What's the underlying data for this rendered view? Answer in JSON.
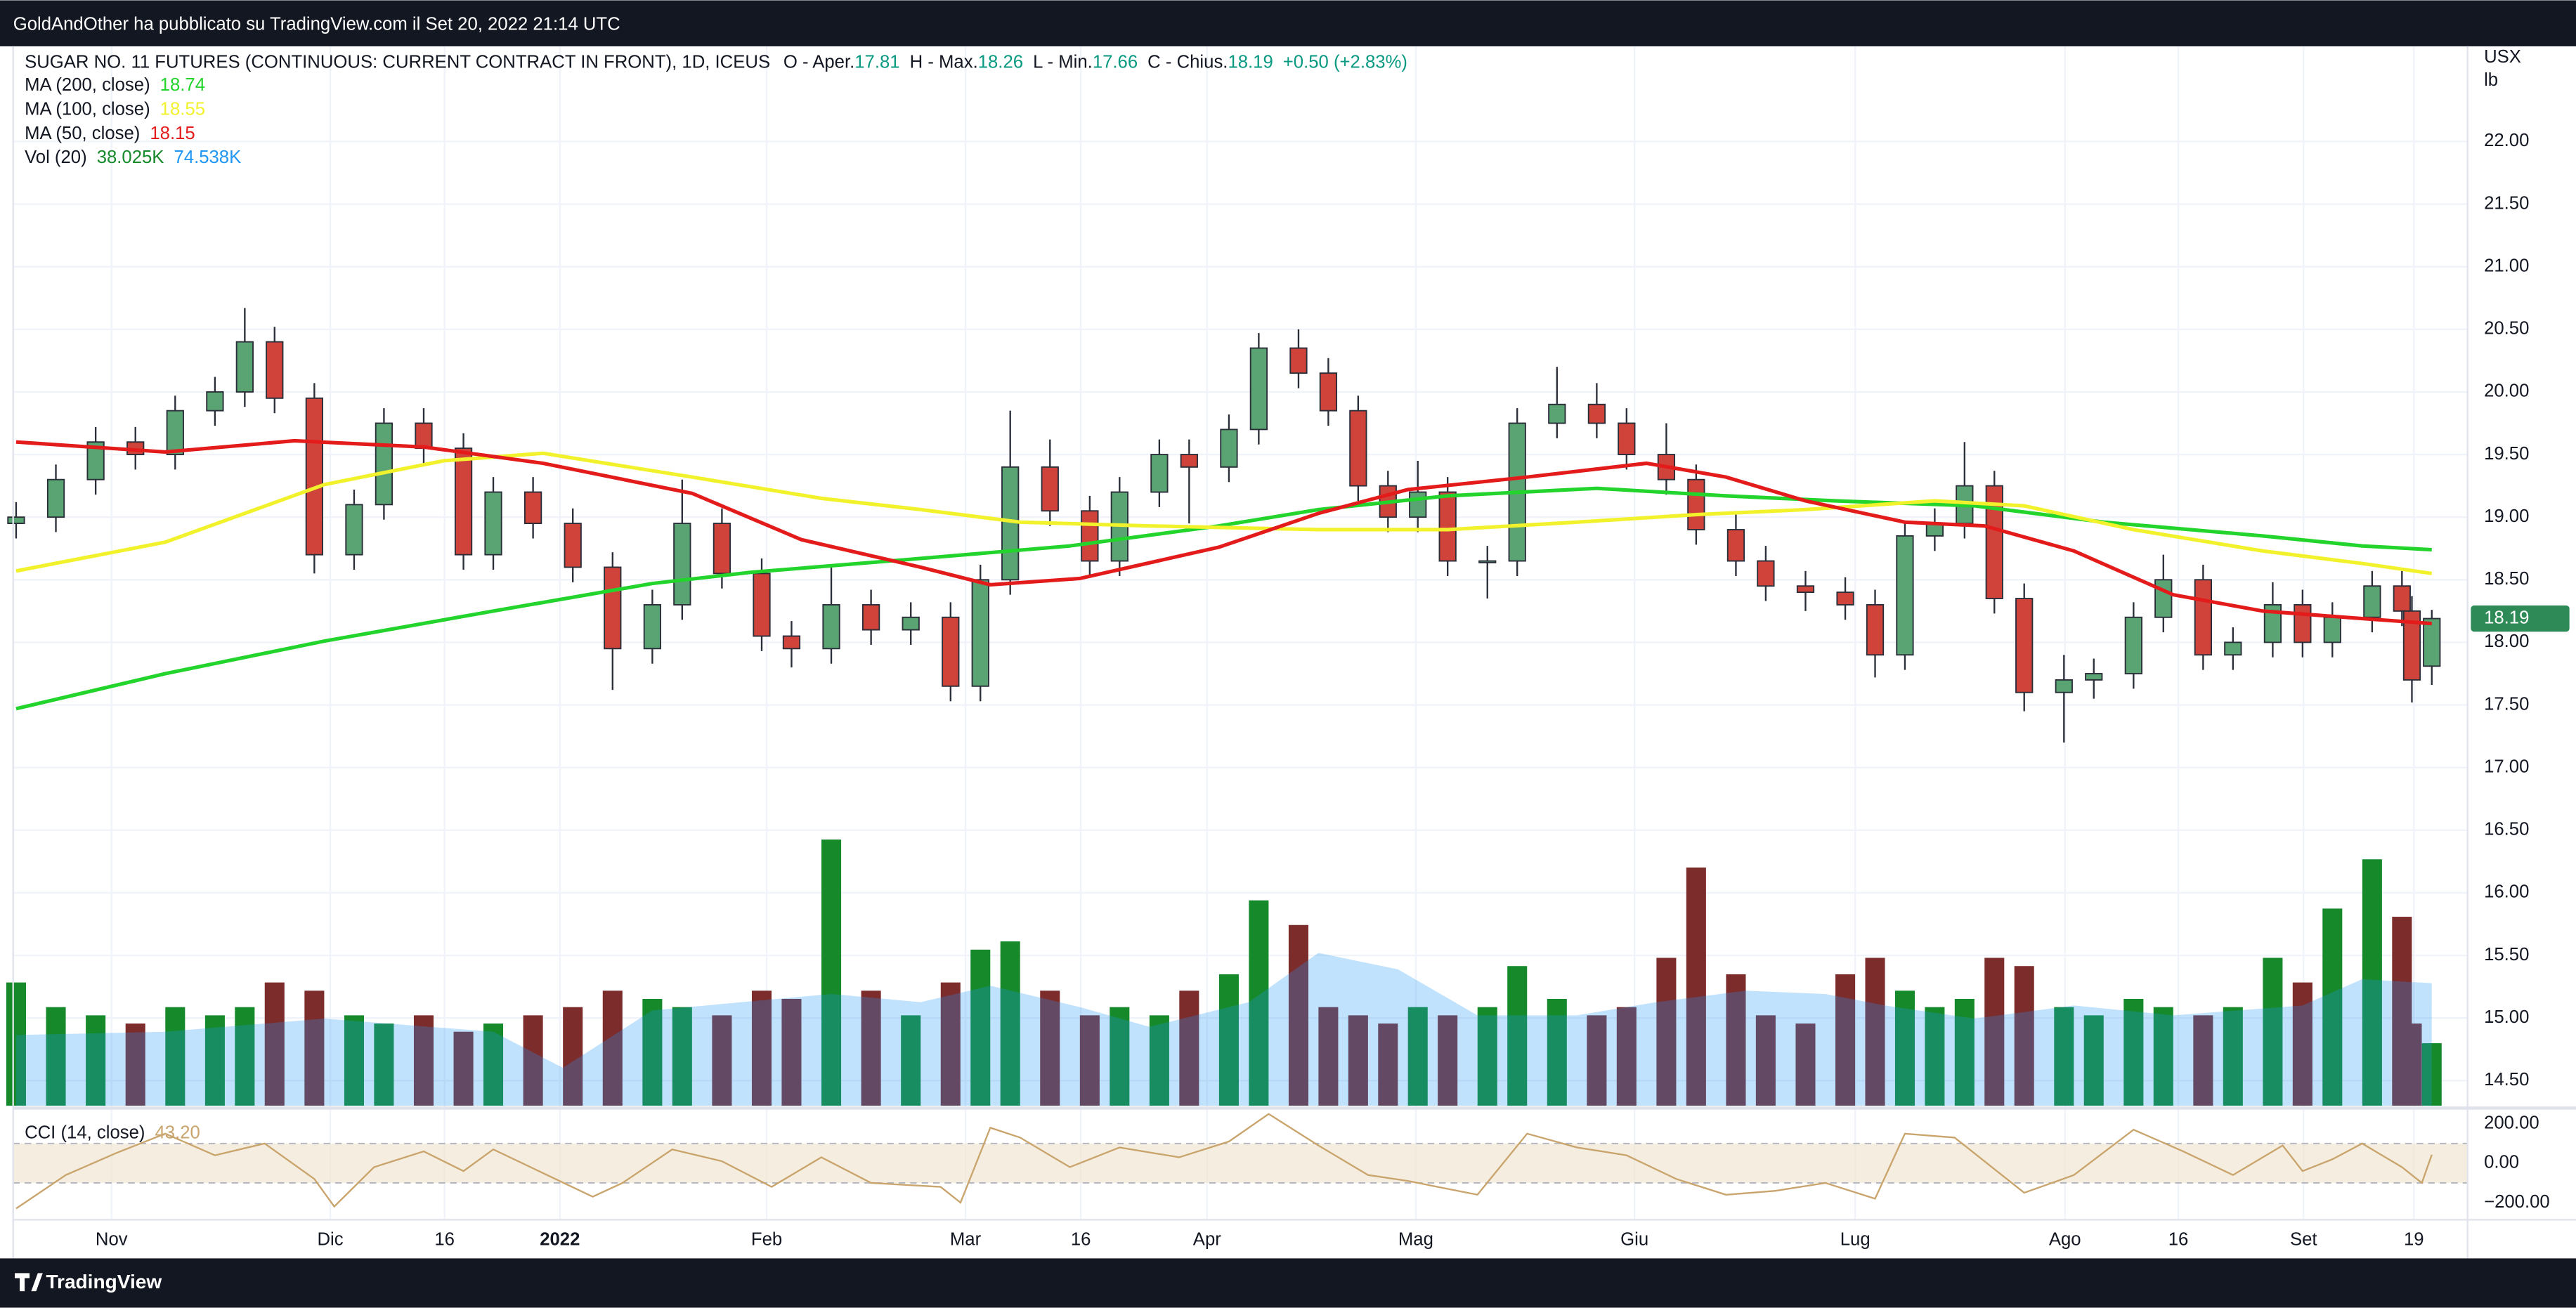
{
  "header": {
    "text": "GoldAndOther ha pubblicato su TradingView.com il Set 20, 2022 21:14 UTC"
  },
  "footer": {
    "brand": "TradingView"
  },
  "chart_data": [
    {
      "type": "candlestick",
      "title": "SUGAR NO. 11 FUTURES (CONTINUOUS: CURRENT CONTRACT IN FRONT), 1D, ICEUS",
      "ohlc_labels": [
        "O - Aper.",
        "H - Max.",
        "L - Min.",
        "C - Chius."
      ],
      "change": "+0.50 (+2.83%)",
      "unit_labels": [
        "USX",
        "lb"
      ],
      "up_color": "#5aa373",
      "down_color": "#d0433b",
      "x": [
        0,
        4,
        8,
        12,
        16,
        20,
        23,
        26,
        30,
        34,
        37,
        41,
        45,
        48,
        52,
        56,
        60,
        64,
        67,
        71,
        75,
        78,
        82,
        86,
        90,
        94,
        97,
        100,
        104,
        108,
        111,
        115,
        118,
        122,
        125,
        129,
        132,
        135,
        138,
        141,
        144,
        148,
        151,
        155,
        159,
        162,
        166,
        169,
        173,
        176,
        180,
        184,
        187,
        190,
        193,
        196,
        199,
        202,
        206,
        209,
        213,
        216,
        220,
        223,
        227,
        230,
        233,
        237,
        240,
        241,
        243
      ],
      "candles": {
        "open": [
          18.95,
          19.0,
          19.3,
          19.6,
          19.5,
          19.85,
          20.0,
          20.4,
          19.95,
          18.7,
          19.1,
          19.75,
          19.55,
          18.7,
          19.2,
          18.95,
          18.6,
          17.95,
          18.3,
          18.95,
          18.55,
          18.05,
          17.95,
          18.3,
          18.1,
          18.2,
          17.65,
          18.5,
          19.4,
          19.05,
          18.65,
          19.2,
          19.5,
          19.4,
          19.7,
          20.35,
          20.15,
          19.85,
          19.25,
          19.0,
          19.2,
          18.65,
          18.65,
          19.75,
          19.9,
          19.75,
          19.5,
          19.3,
          18.9,
          18.65,
          18.45,
          18.4,
          18.3,
          17.9,
          18.85,
          18.95,
          19.25,
          18.35,
          17.6,
          17.7,
          17.75,
          18.2,
          18.5,
          17.9,
          18.0,
          18.3,
          18.0,
          18.2,
          18.45,
          18.25,
          17.81
        ],
        "high": [
          19.12,
          19.42,
          19.72,
          19.72,
          19.97,
          20.12,
          20.67,
          20.52,
          20.07,
          19.22,
          19.87,
          19.87,
          19.67,
          19.32,
          19.32,
          19.07,
          18.72,
          18.42,
          19.3,
          19.07,
          18.67,
          18.17,
          18.6,
          18.42,
          18.32,
          18.32,
          18.62,
          19.85,
          19.62,
          19.17,
          19.32,
          19.62,
          19.62,
          19.82,
          20.47,
          20.5,
          20.27,
          19.97,
          19.37,
          19.45,
          19.32,
          18.77,
          19.87,
          20.2,
          20.07,
          19.87,
          19.75,
          19.42,
          19.02,
          18.77,
          18.57,
          18.52,
          18.42,
          18.97,
          19.07,
          19.6,
          19.37,
          18.47,
          17.9,
          17.87,
          18.32,
          18.7,
          18.62,
          18.12,
          18.48,
          18.42,
          18.32,
          18.57,
          18.57,
          18.37,
          18.26
        ],
        "low": [
          18.83,
          18.88,
          19.18,
          19.38,
          19.38,
          19.73,
          19.88,
          19.83,
          18.55,
          18.58,
          18.98,
          19.43,
          18.58,
          18.58,
          18.83,
          18.48,
          17.62,
          17.83,
          18.18,
          18.43,
          17.93,
          17.8,
          17.83,
          17.98,
          17.98,
          17.53,
          17.53,
          18.38,
          18.93,
          18.53,
          18.53,
          19.08,
          18.95,
          19.28,
          19.58,
          20.03,
          19.73,
          19.13,
          18.88,
          18.88,
          18.53,
          18.35,
          18.53,
          19.63,
          19.63,
          19.38,
          19.18,
          18.78,
          18.53,
          18.33,
          18.25,
          18.18,
          17.72,
          17.78,
          18.73,
          18.83,
          18.23,
          17.45,
          17.2,
          17.55,
          17.63,
          18.08,
          17.78,
          17.78,
          17.88,
          17.88,
          17.88,
          18.08,
          18.13,
          17.52,
          17.66
        ],
        "close": [
          19.0,
          19.3,
          19.6,
          19.5,
          19.85,
          20.0,
          20.4,
          19.95,
          18.7,
          19.1,
          19.75,
          19.55,
          18.7,
          19.2,
          18.95,
          18.6,
          17.95,
          18.3,
          18.95,
          18.55,
          18.05,
          17.95,
          18.3,
          18.1,
          18.2,
          17.65,
          18.5,
          19.4,
          19.05,
          18.65,
          19.2,
          19.5,
          19.4,
          19.7,
          20.35,
          20.15,
          19.85,
          19.25,
          19.0,
          19.2,
          18.65,
          18.65,
          19.75,
          19.9,
          19.75,
          19.5,
          19.3,
          18.9,
          18.65,
          18.45,
          18.4,
          18.3,
          17.9,
          18.85,
          18.95,
          19.25,
          18.35,
          17.6,
          17.7,
          17.75,
          18.2,
          18.5,
          17.9,
          18.0,
          18.3,
          18.0,
          18.2,
          18.45,
          18.25,
          17.7,
          18.19
        ]
      },
      "volume": {
        "name": "Vol (20)",
        "up_color": "#168a2a",
        "down_color": "#7d2c2c",
        "values": [
          75,
          60,
          55,
          50,
          60,
          55,
          60,
          75,
          70,
          55,
          50,
          55,
          45,
          50,
          55,
          60,
          70,
          65,
          60,
          55,
          70,
          65,
          162,
          70,
          55,
          75,
          95,
          100,
          70,
          55,
          60,
          55,
          70,
          80,
          125,
          110,
          60,
          55,
          50,
          60,
          55,
          60,
          85,
          65,
          55,
          60,
          90,
          145,
          80,
          55,
          50,
          80,
          90,
          70,
          60,
          65,
          90,
          85,
          60,
          55,
          65,
          60,
          55,
          60,
          90,
          75,
          120,
          150,
          115,
          50,
          38.025
        ],
        "value_label": "38.025K",
        "label_color": "#168a2a",
        "ma": {
          "color": "#2196f3",
          "x": [
            0,
            15,
            31,
            48,
            55,
            64,
            82,
            91,
            98,
            107,
            114,
            124,
            131,
            139,
            147,
            157,
            165,
            174,
            182,
            188,
            197,
            207,
            217,
            230,
            236,
            243
          ],
          "values": [
            43,
            45,
            53,
            45,
            23,
            58,
            68,
            63,
            73,
            60,
            48,
            63,
            93,
            83,
            55,
            55,
            63,
            70,
            68,
            61,
            53,
            61,
            55,
            61,
            77,
            74.538
          ],
          "value_label": "74.538K"
        }
      },
      "series": [
        {
          "name": "MA (200, close)",
          "color": "#22d42c",
          "x": [
            0,
            15,
            31,
            48,
            64,
            74,
            91,
            106,
            121,
            131,
            144,
            159,
            172,
            183,
            197,
            210,
            226,
            236,
            243
          ],
          "values": [
            17.47,
            17.75,
            18.01,
            18.25,
            18.47,
            18.56,
            18.67,
            18.77,
            18.93,
            19.06,
            19.17,
            19.23,
            19.17,
            19.13,
            19.09,
            18.96,
            18.85,
            18.77,
            18.74
          ]
        },
        {
          "name": "MA (100, close)",
          "color": "#f2f22c",
          "x": [
            0,
            15,
            31,
            43,
            53,
            68,
            81,
            91,
            101,
            114,
            131,
            144,
            157,
            169,
            180,
            193,
            202,
            213,
            226,
            236,
            243
          ],
          "values": [
            18.57,
            18.8,
            19.26,
            19.45,
            19.51,
            19.32,
            19.15,
            19.06,
            18.96,
            18.93,
            18.9,
            18.9,
            18.96,
            19.02,
            19.06,
            19.13,
            19.09,
            18.9,
            18.73,
            18.63,
            18.55
          ]
        },
        {
          "name": "MA (50, close)",
          "color": "#e31b1b",
          "x": [
            0,
            15,
            28,
            41,
            53,
            68,
            79,
            91,
            98,
            107,
            121,
            131,
            140,
            152,
            164,
            172,
            180,
            190,
            198,
            207,
            217,
            226,
            236,
            243
          ],
          "values": [
            19.6,
            19.52,
            19.61,
            19.56,
            19.43,
            19.19,
            18.82,
            18.6,
            18.46,
            18.51,
            18.76,
            19.03,
            19.22,
            19.32,
            19.43,
            19.32,
            19.13,
            18.96,
            18.93,
            18.73,
            18.38,
            18.25,
            18.19,
            18.15
          ]
        }
      ],
      "xlim": [
        -0.3,
        246.6
      ],
      "ylim": [
        14.3,
        22.76
      ],
      "yticks": [
        {
          "value": 22,
          "label": "22.00"
        },
        {
          "value": 21.5,
          "label": "21.50"
        },
        {
          "value": 21,
          "label": "21.00"
        },
        {
          "value": 20.5,
          "label": "20.50"
        },
        {
          "value": 20,
          "label": "20.00"
        },
        {
          "value": 19.5,
          "label": "19.50"
        },
        {
          "value": 19,
          "label": "19.00"
        },
        {
          "value": 18.5,
          "label": "18.50"
        },
        {
          "value": 18,
          "label": "18.00"
        },
        {
          "value": 17.5,
          "label": "17.50"
        },
        {
          "value": 17,
          "label": "17.00"
        },
        {
          "value": 16.5,
          "label": "16.50"
        },
        {
          "value": 16,
          "label": "16.00"
        },
        {
          "value": 15.5,
          "label": "15.50"
        },
        {
          "value": 15,
          "label": "15.00"
        },
        {
          "value": 14.5,
          "label": "14.50"
        }
      ],
      "xticks": [
        {
          "value": 9.6,
          "label": "Nov"
        },
        {
          "value": 31.6,
          "label": "Dic"
        },
        {
          "value": 43.1,
          "label": "16"
        },
        {
          "value": 54.7,
          "label": "2022"
        },
        {
          "value": 75.5,
          "label": "Feb"
        },
        {
          "value": 95.5,
          "label": "Mar"
        },
        {
          "value": 107.1,
          "label": "16"
        },
        {
          "value": 119.8,
          "label": "Apr"
        },
        {
          "value": 140.8,
          "label": "Mag"
        },
        {
          "value": 162.8,
          "label": "Giu"
        },
        {
          "value": 185,
          "label": "Lug"
        },
        {
          "value": 206.1,
          "label": "Ago"
        },
        {
          "value": 217.5,
          "label": "16"
        },
        {
          "value": 230.1,
          "label": "Set"
        },
        {
          "value": 241.2,
          "label": "19"
        }
      ],
      "grid": true,
      "last_price_color": "#2e8b57"
    },
    {
      "type": "line",
      "title": "CCI (14, close)",
      "color": "#c9a46c",
      "band": [
        -100,
        100
      ],
      "band_color": "#efe3cc",
      "x": [
        0,
        5,
        10,
        15,
        20,
        25,
        30,
        32,
        36,
        41,
        45,
        48,
        53,
        58,
        61,
        66,
        71,
        76,
        81,
        86,
        93,
        95,
        98,
        101,
        106,
        111,
        117,
        122,
        126,
        131,
        136,
        140,
        147,
        152,
        157,
        162,
        167,
        172,
        177,
        182,
        187,
        190,
        195,
        199,
        202,
        207,
        213,
        218,
        223,
        228,
        230,
        233,
        236,
        240,
        242,
        243
      ],
      "values": [
        -230,
        -60,
        50,
        150,
        40,
        100,
        -80,
        -220,
        -20,
        60,
        -40,
        70,
        -50,
        -170,
        -100,
        70,
        10,
        -120,
        30,
        -100,
        -120,
        -200,
        180,
        130,
        -20,
        80,
        30,
        110,
        250,
        90,
        -60,
        -90,
        -160,
        150,
        80,
        40,
        -80,
        -160,
        -140,
        -100,
        -180,
        150,
        130,
        -30,
        -150,
        -60,
        170,
        60,
        -60,
        90,
        -40,
        20,
        100,
        -20,
        -100,
        43.2
      ],
      "value_label": "43.20",
      "ylim": [
        -283,
        267
      ],
      "yticks": [
        {
          "value": 200,
          "label": "200.00"
        },
        {
          "value": 0,
          "label": "0.00"
        },
        {
          "value": -200,
          "label": "−200.00"
        }
      ]
    }
  ]
}
